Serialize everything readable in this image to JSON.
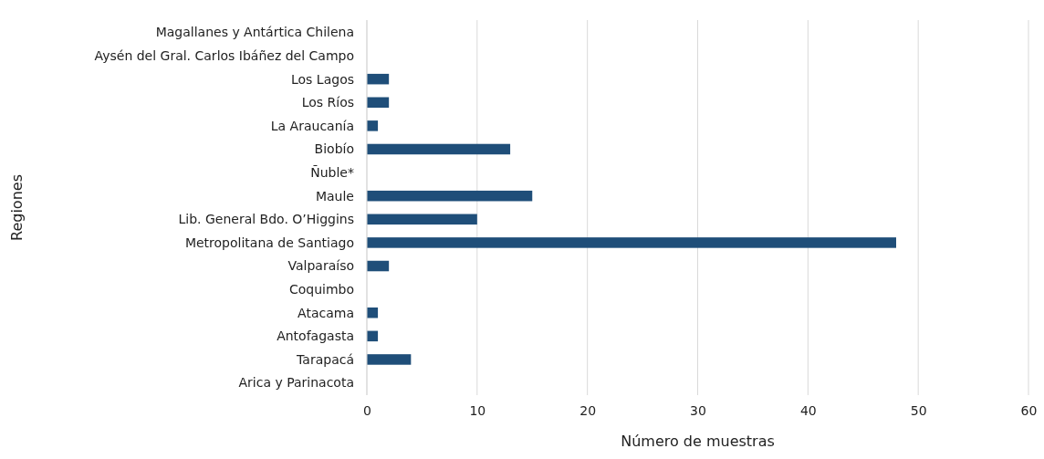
{
  "chart_data": {
    "type": "bar",
    "orientation": "horizontal",
    "xlabel": "Número de muestras",
    "ylabel": "Regiones",
    "categories": [
      "Magallanes y Antártica Chilena",
      "Aysén del Gral. Carlos Ibáñez del Campo",
      "Los Lagos",
      "Los Ríos",
      "La Araucanía",
      "Biobío",
      "Ñuble*",
      "Maule",
      "Lib. General Bdo. O’Higgins",
      "Metropolitana de Santiago",
      "Valparaíso",
      "Coquimbo",
      "Atacama",
      "Antofagasta",
      "Tarapacá",
      "Arica y Parinacota"
    ],
    "values": [
      0,
      0,
      2,
      2,
      1,
      13,
      0,
      15,
      10,
      48,
      2,
      0,
      1,
      1,
      4,
      0
    ],
    "color": "#1f4e79",
    "xlim": [
      0,
      60
    ],
    "xticks": [
      0,
      10,
      20,
      30,
      40,
      50,
      60
    ],
    "grid": "x"
  }
}
